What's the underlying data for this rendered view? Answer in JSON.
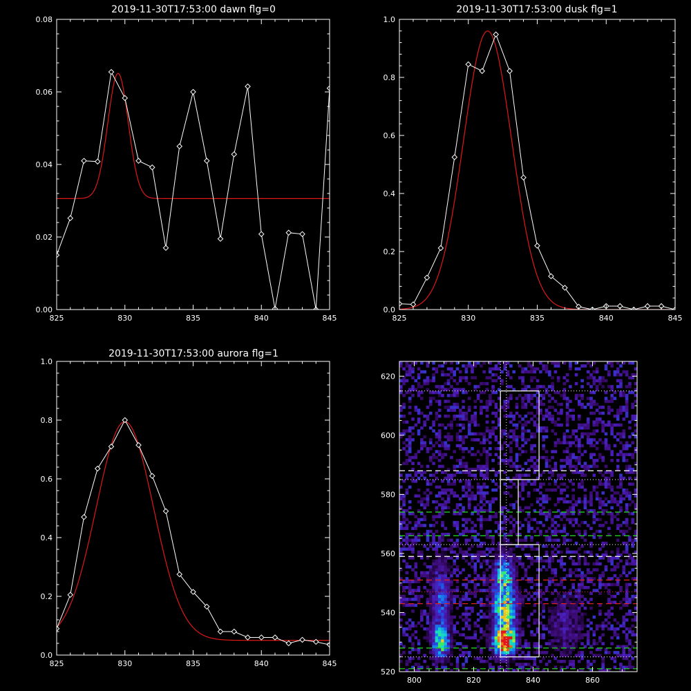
{
  "colors": {
    "background": "#000000",
    "axes": "#ffffff",
    "data": "#ffffff",
    "fit": "#e01818",
    "box": "#ffffff",
    "dash_white": "#ffffff",
    "dash_green": "#22cc22",
    "dash_red": "#dd2020"
  },
  "chart_data": [
    {
      "type": "line",
      "title": "2019-11-30T17:53:00 dawn flg=0",
      "xlim": [
        825,
        845
      ],
      "ylim": [
        0,
        0.08
      ],
      "xticks": [
        825,
        830,
        835,
        840,
        845
      ],
      "yticks": [
        0.0,
        0.02,
        0.04,
        0.06,
        0.08
      ],
      "ytick_labels": [
        "0.00",
        "0.02",
        "0.04",
        "0.06",
        "0.08"
      ],
      "series": [
        {
          "style": "markers",
          "x": [
            825,
            826,
            827,
            828,
            829,
            830,
            831,
            832,
            833,
            834,
            835,
            836,
            837,
            838,
            839,
            840,
            841,
            842,
            843,
            844,
            845
          ],
          "values": [
            0.015,
            0.0252,
            0.041,
            0.0408,
            0.0655,
            0.0583,
            0.041,
            0.0392,
            0.017,
            0.045,
            0.06,
            0.041,
            0.0195,
            0.0428,
            0.0615,
            0.0208,
            0.0002,
            0.0212,
            0.0208,
            0.0,
            0.061
          ]
        },
        {
          "style": "fit",
          "gaussian": {
            "amplitude": 0.0345,
            "center": 829.5,
            "sigma": 0.75,
            "offset": 0.0306
          }
        }
      ]
    },
    {
      "type": "line",
      "title": "2019-11-30T17:53:00 dusk flg=1",
      "xlim": [
        825,
        845
      ],
      "ylim": [
        0,
        1.0
      ],
      "xticks": [
        825,
        830,
        835,
        840,
        845
      ],
      "yticks": [
        0.0,
        0.2,
        0.4,
        0.6,
        0.8,
        1.0
      ],
      "ytick_labels": [
        "0.0",
        "0.2",
        "0.4",
        "0.6",
        "0.8",
        "1.0"
      ],
      "series": [
        {
          "style": "markers",
          "x": [
            825,
            826,
            827,
            828,
            829,
            830,
            831,
            832,
            833,
            834,
            835,
            836,
            837,
            838,
            839,
            840,
            841,
            842,
            843,
            844,
            845
          ],
          "values": [
            0.02,
            0.018,
            0.11,
            0.212,
            0.525,
            0.845,
            0.822,
            0.948,
            0.822,
            0.455,
            0.22,
            0.115,
            0.075,
            0.01,
            0.0,
            0.012,
            0.012,
            0.0,
            0.012,
            0.012,
            0.0
          ]
        },
        {
          "style": "fit",
          "gaussian": {
            "amplitude": 0.96,
            "center": 831.4,
            "sigma": 1.75,
            "offset": 0.0
          }
        }
      ]
    },
    {
      "type": "line",
      "title": "2019-11-30T17:53:00 aurora flg=1",
      "xlim": [
        825,
        845
      ],
      "ylim": [
        0,
        1.0
      ],
      "xticks": [
        825,
        830,
        835,
        840,
        845
      ],
      "yticks": [
        0.0,
        0.2,
        0.4,
        0.6,
        0.8,
        1.0
      ],
      "ytick_labels": [
        "0.0",
        "0.2",
        "0.4",
        "0.6",
        "0.8",
        "1.0"
      ],
      "series": [
        {
          "style": "markers",
          "x": [
            825,
            826,
            827,
            828,
            829,
            830,
            831,
            832,
            833,
            834,
            835,
            836,
            837,
            838,
            839,
            840,
            841,
            842,
            843,
            844,
            845
          ],
          "values": [
            0.09,
            0.205,
            0.47,
            0.635,
            0.71,
            0.8,
            0.715,
            0.61,
            0.49,
            0.275,
            0.215,
            0.165,
            0.08,
            0.08,
            0.06,
            0.06,
            0.06,
            0.04,
            0.052,
            0.045,
            0.035
          ]
        },
        {
          "style": "fit",
          "gaussian": {
            "amplitude": 0.745,
            "center": 830.0,
            "sigma": 2.1,
            "offset": 0.05
          }
        }
      ]
    },
    {
      "type": "heatmap",
      "title": "",
      "xlim": [
        795,
        875
      ],
      "ylim": [
        520,
        625
      ],
      "xticks": [
        800,
        820,
        840,
        860
      ],
      "yticks": [
        520,
        540,
        560,
        580,
        600,
        620
      ],
      "colormap": [
        "#0a0018",
        "#3a0a6e",
        "#4a1ab4",
        "#1e50e6",
        "#14a0f0",
        "#16e0c0",
        "#46ee46",
        "#e8e820",
        "#f07818",
        "#e01818"
      ],
      "vertical_dotted_x": [
        829,
        831
      ],
      "boxes": [
        {
          "x": [
            829,
            842
          ],
          "y": [
            585,
            615
          ]
        },
        {
          "x": [
            829,
            835
          ],
          "y": [
            563,
            585
          ]
        },
        {
          "x": [
            829,
            842
          ],
          "y": [
            525,
            563
          ]
        }
      ],
      "hlines": [
        {
          "y": 615,
          "color": "white",
          "style": "dotted"
        },
        {
          "y": 588,
          "color": "white",
          "style": "dashed"
        },
        {
          "y": 585,
          "color": "white",
          "style": "dotted"
        },
        {
          "y": 574,
          "color": "green",
          "style": "dashed"
        },
        {
          "y": 566,
          "color": "green",
          "style": "dashed"
        },
        {
          "y": 563,
          "color": "white",
          "style": "dotted"
        },
        {
          "y": 559,
          "color": "white",
          "style": "dashed"
        },
        {
          "y": 551,
          "color": "red",
          "style": "dashed"
        },
        {
          "y": 547,
          "color": "red",
          "style": "dotted"
        },
        {
          "y": 543,
          "color": "red",
          "style": "dashed"
        },
        {
          "y": 528,
          "color": "green",
          "style": "dashed"
        },
        {
          "y": 525,
          "color": "white",
          "style": "dotted"
        },
        {
          "y": 521,
          "color": "green",
          "style": "dashed"
        }
      ],
      "intensity_features": [
        {
          "x": 830.5,
          "y": 530,
          "sx": 2.3,
          "sy": 3.0,
          "amp": 1.0
        },
        {
          "x": 830.5,
          "y": 540,
          "sx": 2.6,
          "sy": 6.0,
          "amp": 0.62
        },
        {
          "x": 830.0,
          "y": 552,
          "sx": 2.4,
          "sy": 6.0,
          "amp": 0.42
        },
        {
          "x": 809.0,
          "y": 530,
          "sx": 2.0,
          "sy": 3.5,
          "amp": 0.55
        },
        {
          "x": 809.0,
          "y": 545,
          "sx": 2.2,
          "sy": 9.0,
          "amp": 0.3
        },
        {
          "x": 851.0,
          "y": 536,
          "sx": 4.0,
          "sy": 7.0,
          "amp": 0.16
        }
      ]
    }
  ]
}
